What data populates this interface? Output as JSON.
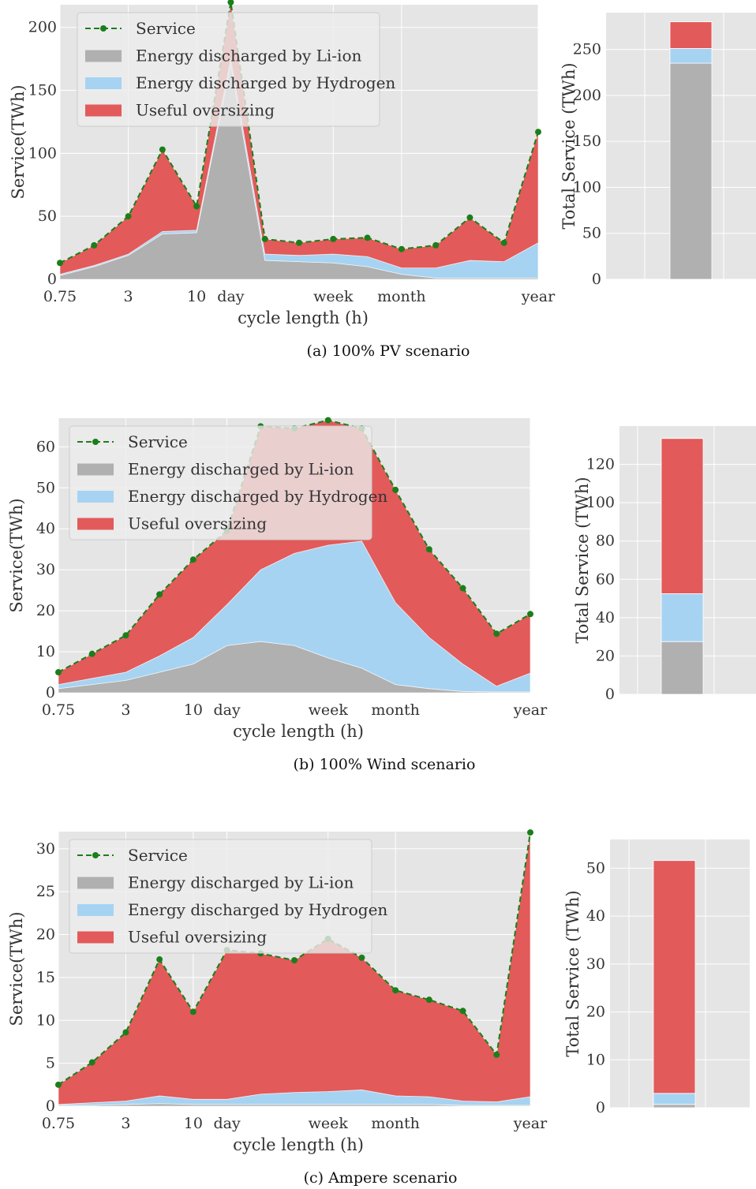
{
  "legend": {
    "service": "Service",
    "liion": "Energy discharged by Li-ion",
    "hydrogen": "Energy discharged by Hydrogen",
    "oversizing": "Useful oversizing"
  },
  "colors": {
    "liion": "#b0b0b0",
    "hydrogen": "#a7d3f2",
    "oversizing": "#e25a5a",
    "service": "#1a7f1a",
    "plot_bg": "#e5e5e5",
    "grid": "#ffffff"
  },
  "x_tick_labels": [
    "0.75",
    "3",
    "10",
    "day",
    "week",
    "month",
    "year"
  ],
  "chart_data": [
    {
      "type": "area",
      "caption": "(a) 100% PV scenario",
      "xlabel": "cycle length (h)",
      "ylabel": "Service(TWh)",
      "ylim": [
        0,
        218
      ],
      "yticks": [
        0,
        50,
        100,
        150,
        200
      ],
      "series": [
        {
          "name": "Energy discharged by Li-ion",
          "values": [
            3,
            10,
            19,
            36,
            37,
            170,
            15,
            14,
            13,
            10,
            4,
            1,
            1,
            1,
            1
          ]
        },
        {
          "name": "Energy discharged by Hydrogen",
          "values": [
            1,
            1,
            1,
            2,
            2,
            5,
            5,
            5,
            7,
            8,
            5,
            8,
            14,
            13,
            28
          ]
        },
        {
          "name": "Useful oversizing",
          "values": [
            9,
            16,
            30,
            65,
            19,
            45,
            12,
            10,
            12,
            15,
            15,
            18,
            34,
            15,
            88
          ]
        }
      ],
      "service": [
        13,
        27,
        50,
        103,
        58,
        220,
        32,
        29,
        32,
        33,
        24,
        27,
        49,
        29,
        117
      ],
      "total": {
        "ylabel": "Total Service (TWh)",
        "ylim": [
          0,
          290
        ],
        "yticks": [
          0,
          50,
          100,
          150,
          200,
          250
        ],
        "liion": 235,
        "hydrogen": 16,
        "oversizing": 29
      }
    },
    {
      "type": "area",
      "caption": "(b) 100% Wind scenario",
      "xlabel": "cycle length (h)",
      "ylabel": "Service(TWh)",
      "ylim": [
        0,
        67
      ],
      "yticks": [
        0,
        10,
        20,
        30,
        40,
        50,
        60
      ],
      "series": [
        {
          "name": "Energy discharged by Li-ion",
          "values": [
            1,
            2,
            3,
            5,
            7,
            11.5,
            12.5,
            11.5,
            8.5,
            6,
            2,
            1,
            0.3,
            0.2,
            0.2
          ]
        },
        {
          "name": "Energy discharged by Hydrogen",
          "values": [
            1,
            1.5,
            2,
            4,
            6.5,
            10,
            17.5,
            22.5,
            27.5,
            31,
            20,
            12.5,
            6.7,
            1.4,
            4.6
          ]
        },
        {
          "name": "Useful oversizing",
          "values": [
            3,
            6,
            9,
            15,
            19,
            18,
            35,
            30.5,
            30.5,
            27.5,
            27.5,
            21.5,
            18.5,
            12.8,
            14.4
          ]
        }
      ],
      "service": [
        5,
        9.5,
        14,
        24,
        32.5,
        39.5,
        65,
        64.5,
        66.5,
        64.5,
        49.5,
        35,
        25.5,
        14.4,
        19.2
      ],
      "total": {
        "ylabel": "Total Service (TWh)",
        "ylim": [
          0,
          140
        ],
        "yticks": [
          0,
          20,
          40,
          60,
          80,
          100,
          120
        ],
        "liion": 27.5,
        "hydrogen": 25,
        "oversizing": 81
      }
    },
    {
      "type": "area",
      "caption": "(c) Ampere scenario",
      "xlabel": "cycle length (h)",
      "ylabel": "Service(TWh)",
      "ylim": [
        0,
        32
      ],
      "yticks": [
        0,
        5,
        10,
        15,
        20,
        25,
        30
      ],
      "series": [
        {
          "name": "Energy discharged by Li-ion",
          "values": [
            0.1,
            0.1,
            0.2,
            0.3,
            0.2,
            0.2,
            0.2,
            0.2,
            0.2,
            0.2,
            0.2,
            0.2,
            0.1,
            0.1,
            0.1
          ]
        },
        {
          "name": "Energy discharged by Hydrogen",
          "values": [
            0.1,
            0.3,
            0.4,
            0.9,
            0.6,
            0.6,
            1.2,
            1.4,
            1.5,
            1.7,
            1,
            0.9,
            0.5,
            0.4,
            1
          ]
        },
        {
          "name": "Useful oversizing",
          "values": [
            2.3,
            4.7,
            8,
            15.9,
            10.2,
            17.4,
            16.4,
            15.4,
            17.8,
            15.4,
            12.3,
            11.3,
            10.5,
            5.5,
            30.8
          ]
        }
      ],
      "service": [
        2.5,
        5.1,
        8.6,
        17.1,
        11,
        18.2,
        17.8,
        17,
        19.5,
        17.3,
        13.5,
        12.4,
        11.1,
        6,
        31.9
      ],
      "total": {
        "ylabel": "Total Service (TWh)",
        "ylim": [
          0,
          56
        ],
        "yticks": [
          0,
          10,
          20,
          30,
          40,
          50
        ],
        "liion": 0.7,
        "hydrogen": 2.3,
        "oversizing": 48.6
      }
    }
  ]
}
